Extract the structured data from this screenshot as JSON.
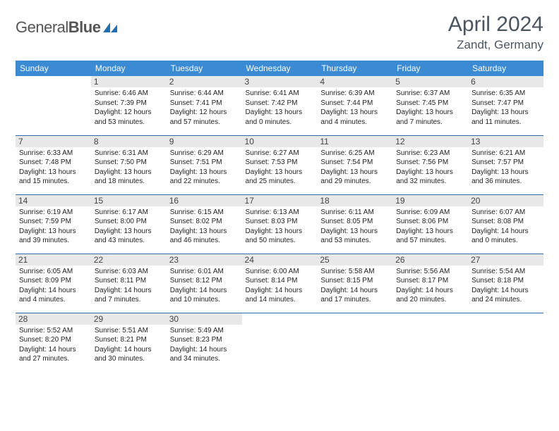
{
  "logo": {
    "part1": "General",
    "part2": "Blue"
  },
  "title": "April 2024",
  "location": "Zandt, Germany",
  "colors": {
    "header_bg": "#3b8bd4",
    "header_fg": "#ffffff",
    "row_divider": "#2f6aa8",
    "daynum_bg": "#e8e8e8",
    "text": "#222222",
    "title_color": "#4a5560",
    "logo_blue": "#1f6fb2"
  },
  "weekdays": [
    "Sunday",
    "Monday",
    "Tuesday",
    "Wednesday",
    "Thursday",
    "Friday",
    "Saturday"
  ],
  "weeks": [
    [
      {
        "day": "",
        "sunrise": "",
        "sunset": "",
        "daylight": ""
      },
      {
        "day": "1",
        "sunrise": "Sunrise: 6:46 AM",
        "sunset": "Sunset: 7:39 PM",
        "daylight": "Daylight: 12 hours and 53 minutes."
      },
      {
        "day": "2",
        "sunrise": "Sunrise: 6:44 AM",
        "sunset": "Sunset: 7:41 PM",
        "daylight": "Daylight: 12 hours and 57 minutes."
      },
      {
        "day": "3",
        "sunrise": "Sunrise: 6:41 AM",
        "sunset": "Sunset: 7:42 PM",
        "daylight": "Daylight: 13 hours and 0 minutes."
      },
      {
        "day": "4",
        "sunrise": "Sunrise: 6:39 AM",
        "sunset": "Sunset: 7:44 PM",
        "daylight": "Daylight: 13 hours and 4 minutes."
      },
      {
        "day": "5",
        "sunrise": "Sunrise: 6:37 AM",
        "sunset": "Sunset: 7:45 PM",
        "daylight": "Daylight: 13 hours and 7 minutes."
      },
      {
        "day": "6",
        "sunrise": "Sunrise: 6:35 AM",
        "sunset": "Sunset: 7:47 PM",
        "daylight": "Daylight: 13 hours and 11 minutes."
      }
    ],
    [
      {
        "day": "7",
        "sunrise": "Sunrise: 6:33 AM",
        "sunset": "Sunset: 7:48 PM",
        "daylight": "Daylight: 13 hours and 15 minutes."
      },
      {
        "day": "8",
        "sunrise": "Sunrise: 6:31 AM",
        "sunset": "Sunset: 7:50 PM",
        "daylight": "Daylight: 13 hours and 18 minutes."
      },
      {
        "day": "9",
        "sunrise": "Sunrise: 6:29 AM",
        "sunset": "Sunset: 7:51 PM",
        "daylight": "Daylight: 13 hours and 22 minutes."
      },
      {
        "day": "10",
        "sunrise": "Sunrise: 6:27 AM",
        "sunset": "Sunset: 7:53 PM",
        "daylight": "Daylight: 13 hours and 25 minutes."
      },
      {
        "day": "11",
        "sunrise": "Sunrise: 6:25 AM",
        "sunset": "Sunset: 7:54 PM",
        "daylight": "Daylight: 13 hours and 29 minutes."
      },
      {
        "day": "12",
        "sunrise": "Sunrise: 6:23 AM",
        "sunset": "Sunset: 7:56 PM",
        "daylight": "Daylight: 13 hours and 32 minutes."
      },
      {
        "day": "13",
        "sunrise": "Sunrise: 6:21 AM",
        "sunset": "Sunset: 7:57 PM",
        "daylight": "Daylight: 13 hours and 36 minutes."
      }
    ],
    [
      {
        "day": "14",
        "sunrise": "Sunrise: 6:19 AM",
        "sunset": "Sunset: 7:59 PM",
        "daylight": "Daylight: 13 hours and 39 minutes."
      },
      {
        "day": "15",
        "sunrise": "Sunrise: 6:17 AM",
        "sunset": "Sunset: 8:00 PM",
        "daylight": "Daylight: 13 hours and 43 minutes."
      },
      {
        "day": "16",
        "sunrise": "Sunrise: 6:15 AM",
        "sunset": "Sunset: 8:02 PM",
        "daylight": "Daylight: 13 hours and 46 minutes."
      },
      {
        "day": "17",
        "sunrise": "Sunrise: 6:13 AM",
        "sunset": "Sunset: 8:03 PM",
        "daylight": "Daylight: 13 hours and 50 minutes."
      },
      {
        "day": "18",
        "sunrise": "Sunrise: 6:11 AM",
        "sunset": "Sunset: 8:05 PM",
        "daylight": "Daylight: 13 hours and 53 minutes."
      },
      {
        "day": "19",
        "sunrise": "Sunrise: 6:09 AM",
        "sunset": "Sunset: 8:06 PM",
        "daylight": "Daylight: 13 hours and 57 minutes."
      },
      {
        "day": "20",
        "sunrise": "Sunrise: 6:07 AM",
        "sunset": "Sunset: 8:08 PM",
        "daylight": "Daylight: 14 hours and 0 minutes."
      }
    ],
    [
      {
        "day": "21",
        "sunrise": "Sunrise: 6:05 AM",
        "sunset": "Sunset: 8:09 PM",
        "daylight": "Daylight: 14 hours and 4 minutes."
      },
      {
        "day": "22",
        "sunrise": "Sunrise: 6:03 AM",
        "sunset": "Sunset: 8:11 PM",
        "daylight": "Daylight: 14 hours and 7 minutes."
      },
      {
        "day": "23",
        "sunrise": "Sunrise: 6:01 AM",
        "sunset": "Sunset: 8:12 PM",
        "daylight": "Daylight: 14 hours and 10 minutes."
      },
      {
        "day": "24",
        "sunrise": "Sunrise: 6:00 AM",
        "sunset": "Sunset: 8:14 PM",
        "daylight": "Daylight: 14 hours and 14 minutes."
      },
      {
        "day": "25",
        "sunrise": "Sunrise: 5:58 AM",
        "sunset": "Sunset: 8:15 PM",
        "daylight": "Daylight: 14 hours and 17 minutes."
      },
      {
        "day": "26",
        "sunrise": "Sunrise: 5:56 AM",
        "sunset": "Sunset: 8:17 PM",
        "daylight": "Daylight: 14 hours and 20 minutes."
      },
      {
        "day": "27",
        "sunrise": "Sunrise: 5:54 AM",
        "sunset": "Sunset: 8:18 PM",
        "daylight": "Daylight: 14 hours and 24 minutes."
      }
    ],
    [
      {
        "day": "28",
        "sunrise": "Sunrise: 5:52 AM",
        "sunset": "Sunset: 8:20 PM",
        "daylight": "Daylight: 14 hours and 27 minutes."
      },
      {
        "day": "29",
        "sunrise": "Sunrise: 5:51 AM",
        "sunset": "Sunset: 8:21 PM",
        "daylight": "Daylight: 14 hours and 30 minutes."
      },
      {
        "day": "30",
        "sunrise": "Sunrise: 5:49 AM",
        "sunset": "Sunset: 8:23 PM",
        "daylight": "Daylight: 14 hours and 34 minutes."
      },
      {
        "day": "",
        "sunrise": "",
        "sunset": "",
        "daylight": ""
      },
      {
        "day": "",
        "sunrise": "",
        "sunset": "",
        "daylight": ""
      },
      {
        "day": "",
        "sunrise": "",
        "sunset": "",
        "daylight": ""
      },
      {
        "day": "",
        "sunrise": "",
        "sunset": "",
        "daylight": ""
      }
    ]
  ]
}
